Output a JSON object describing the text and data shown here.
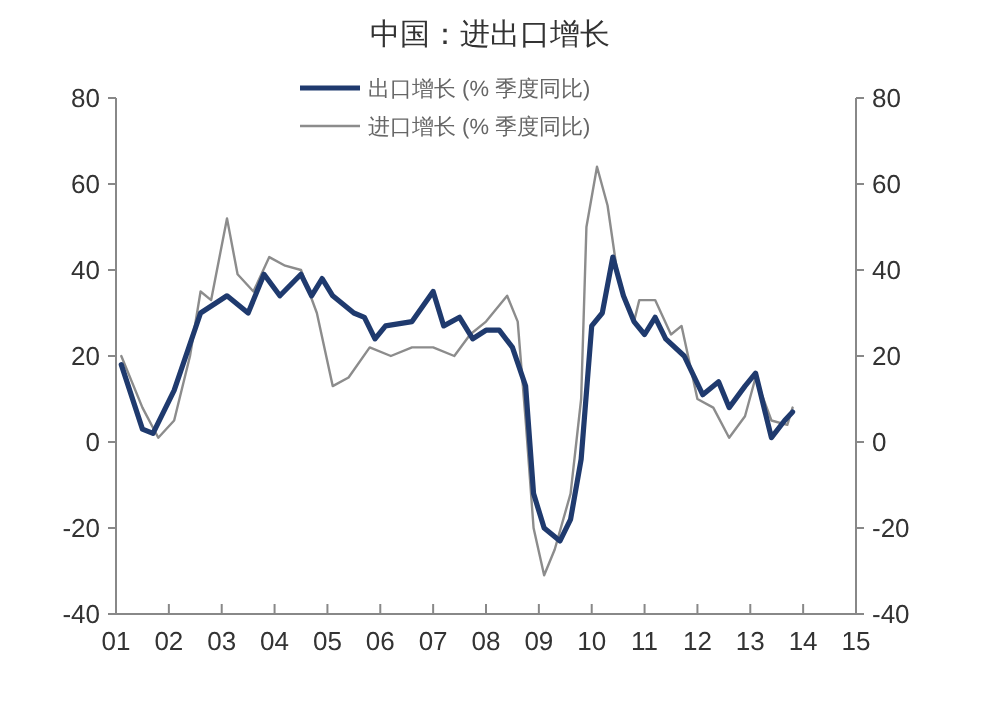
{
  "chart_data": {
    "type": "line",
    "title": "中国：进出口增长",
    "legend": "top",
    "marker": "none",
    "line_style": "solid",
    "grid": false,
    "xlim": [
      2001,
      2015
    ],
    "xticks": [
      {
        "value": 2001,
        "label": "01"
      },
      {
        "value": 2002,
        "label": "02"
      },
      {
        "value": 2003,
        "label": "03"
      },
      {
        "value": 2004,
        "label": "04"
      },
      {
        "value": 2005,
        "label": "05"
      },
      {
        "value": 2006,
        "label": "06"
      },
      {
        "value": 2007,
        "label": "07"
      },
      {
        "value": 2008,
        "label": "08"
      },
      {
        "value": 2009,
        "label": "09"
      },
      {
        "value": 2010,
        "label": "10"
      },
      {
        "value": 2011,
        "label": "11"
      },
      {
        "value": 2012,
        "label": "12"
      },
      {
        "value": 2013,
        "label": "13"
      },
      {
        "value": 2014,
        "label": "14"
      },
      {
        "value": 2015,
        "label": "15"
      }
    ],
    "ylim": [
      -40,
      80
    ],
    "yticks": [
      -40,
      -20,
      0,
      20,
      40,
      60,
      80
    ],
    "y2lim": [
      -40,
      80
    ],
    "y2ticks": [
      -40,
      -20,
      0,
      20,
      40,
      60,
      80
    ],
    "series": [
      {
        "name": "出口增长 (% 季度同比)",
        "color": "#1f3a6e",
        "x": [
          2001.1,
          2001.5,
          2001.7,
          2002.1,
          2002.6,
          2003.1,
          2003.5,
          2003.8,
          2004.1,
          2004.5,
          2004.7,
          2004.9,
          2005.1,
          2005.5,
          2005.7,
          2005.9,
          2006.1,
          2006.6,
          2007.0,
          2007.2,
          2007.5,
          2007.75,
          2008.0,
          2008.25,
          2008.5,
          2008.75,
          2008.9,
          2009.1,
          2009.4,
          2009.6,
          2009.8,
          2010.0,
          2010.2,
          2010.4,
          2010.6,
          2010.8,
          2011.0,
          2011.2,
          2011.4,
          2011.75,
          2012.1,
          2012.4,
          2012.6,
          2012.9,
          2013.1,
          2013.4,
          2013.65,
          2013.8
        ],
        "values": [
          18,
          3,
          2,
          12,
          30,
          34,
          30,
          39,
          34,
          39,
          34,
          38,
          34,
          30,
          29,
          24,
          27,
          28,
          35,
          27,
          29,
          24,
          26,
          26,
          22,
          13,
          -12,
          -20,
          -23,
          -18,
          -4,
          27,
          30,
          43,
          34,
          28,
          25,
          29,
          24,
          20,
          11,
          14,
          8,
          13,
          16,
          1,
          5,
          7
        ]
      },
      {
        "name": "进口增长 (% 季度同比)",
        "color": "#8c8c8c",
        "x": [
          2001.1,
          2001.5,
          2001.8,
          2002.1,
          2002.4,
          2002.6,
          2002.8,
          2003.1,
          2003.3,
          2003.6,
          2003.9,
          2004.2,
          2004.5,
          2004.8,
          2005.1,
          2005.4,
          2005.8,
          2006.2,
          2006.6,
          2007.0,
          2007.4,
          2007.7,
          2008.0,
          2008.4,
          2008.6,
          2008.75,
          2008.9,
          2009.1,
          2009.3,
          2009.6,
          2009.8,
          2009.9,
          2010.1,
          2010.3,
          2010.5,
          2010.8,
          2010.9,
          2011.2,
          2011.5,
          2011.7,
          2012.0,
          2012.3,
          2012.6,
          2012.9,
          2013.1,
          2013.4,
          2013.7,
          2013.8
        ],
        "values": [
          20,
          8,
          1,
          5,
          20,
          35,
          33,
          52,
          39,
          35,
          43,
          41,
          40,
          30,
          13,
          15,
          22,
          20,
          22,
          22,
          20,
          25,
          28,
          34,
          28,
          5,
          -20,
          -31,
          -25,
          -12,
          10,
          50,
          64,
          55,
          38,
          28,
          33,
          33,
          25,
          27,
          10,
          8,
          1,
          6,
          15,
          5,
          4,
          8
        ]
      }
    ]
  }
}
